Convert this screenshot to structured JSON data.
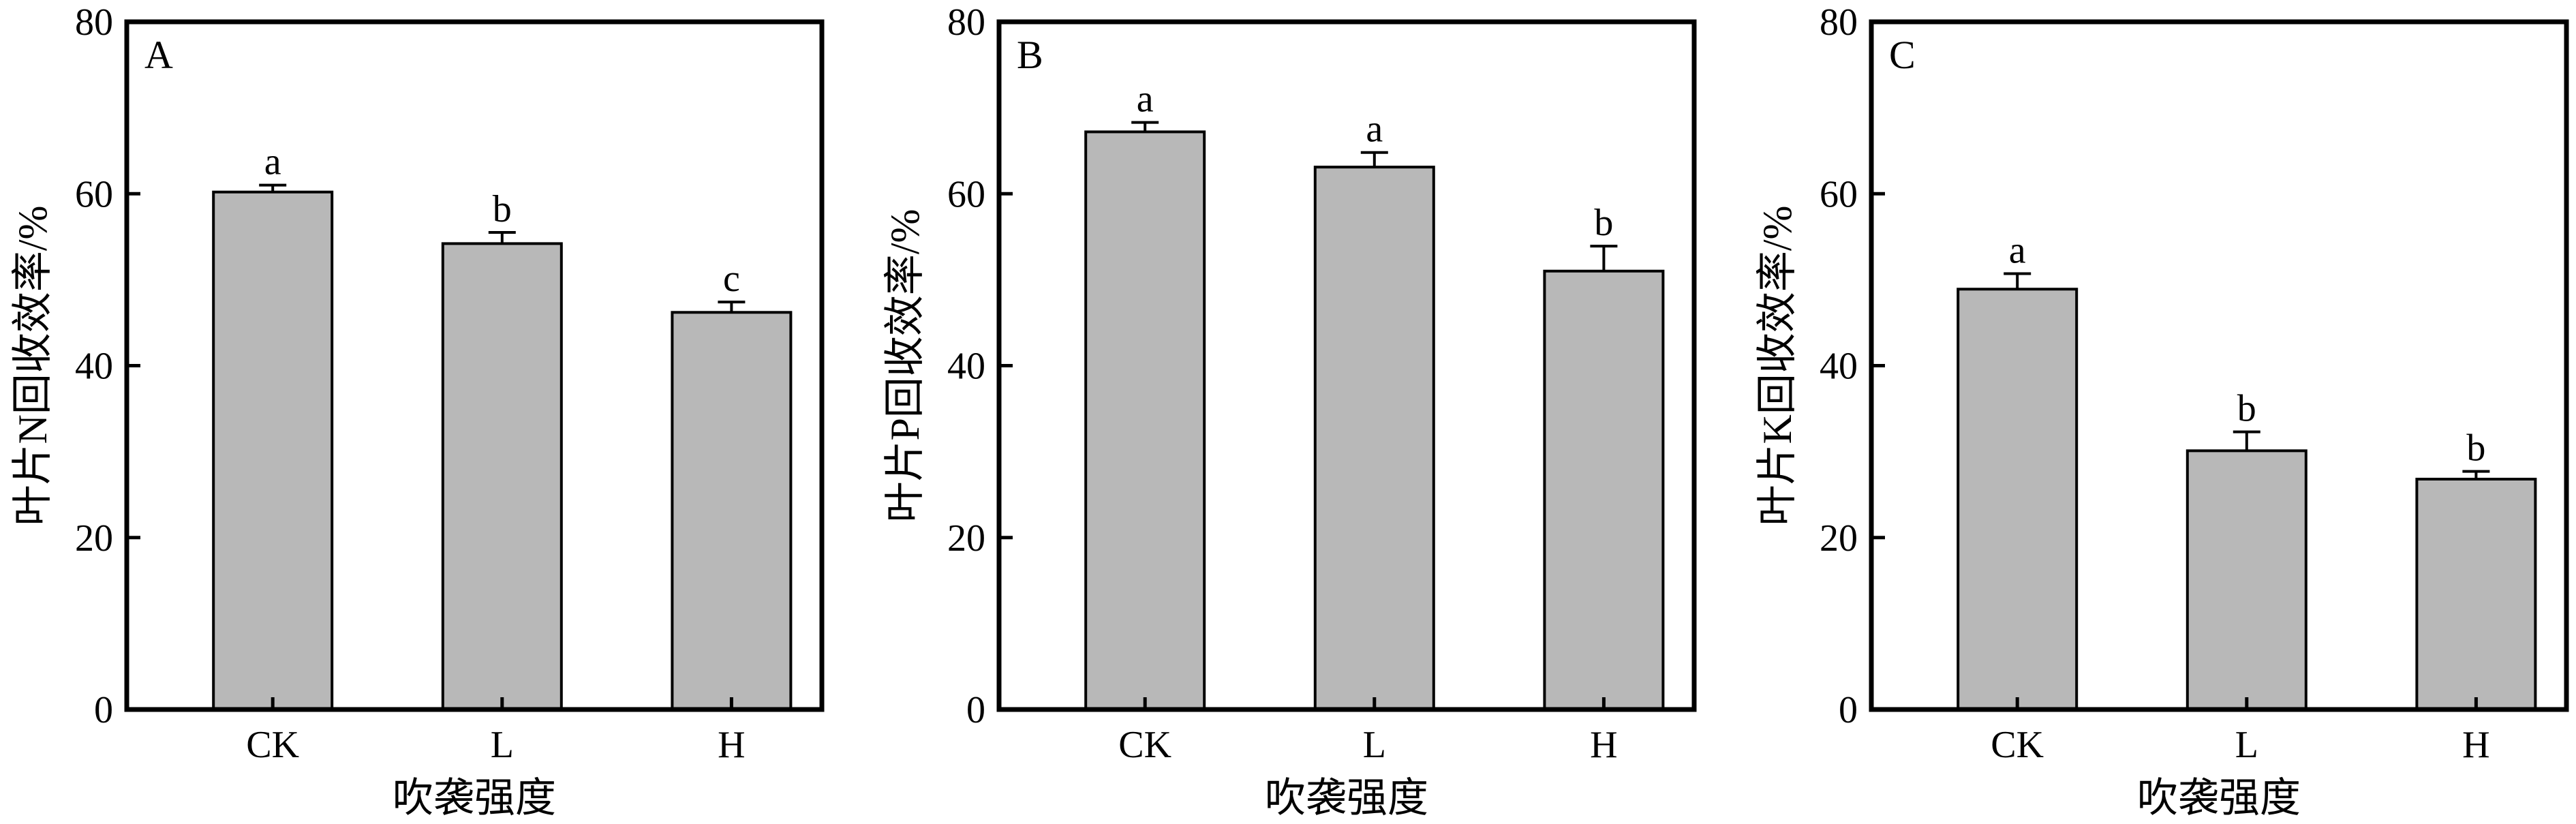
{
  "figure": {
    "xlabel": "吹袭强度"
  },
  "chart_data": [
    {
      "type": "bar",
      "panel_label": "A",
      "ylabel": "叶片N回收效率/%",
      "xlabel": "吹袭强度",
      "categories": [
        "CK",
        "L",
        "H"
      ],
      "values": [
        60.2,
        54.2,
        46.2
      ],
      "errors": [
        0.8,
        1.3,
        1.2
      ],
      "significance": [
        "a",
        "b",
        "c"
      ],
      "ylim": [
        0,
        80
      ],
      "yticks": [
        0,
        20,
        40,
        60,
        80
      ],
      "colors": {
        "bar": "#b8b8b8",
        "edge": "#000000"
      }
    },
    {
      "type": "bar",
      "panel_label": "B",
      "ylabel": "叶片P回收效率/%",
      "xlabel": "吹袭强度",
      "categories": [
        "CK",
        "L",
        "H"
      ],
      "values": [
        67.2,
        63.1,
        51.0
      ],
      "errors": [
        1.1,
        1.7,
        2.9
      ],
      "significance": [
        "a",
        "a",
        "b"
      ],
      "ylim": [
        0,
        80
      ],
      "yticks": [
        0,
        20,
        40,
        60,
        80
      ],
      "colors": {
        "bar": "#b8b8b8",
        "edge": "#000000"
      }
    },
    {
      "type": "bar",
      "panel_label": "C",
      "ylabel": "叶片K回收效率/%",
      "xlabel": "吹袭强度",
      "categories": [
        "CK",
        "L",
        "H"
      ],
      "values": [
        48.9,
        30.1,
        26.8
      ],
      "errors": [
        1.8,
        2.2,
        0.9
      ],
      "significance": [
        "a",
        "b",
        "b"
      ],
      "ylim": [
        0,
        80
      ],
      "yticks": [
        0,
        20,
        40,
        60,
        80
      ],
      "colors": {
        "bar": "#b8b8b8",
        "edge": "#000000"
      }
    }
  ]
}
